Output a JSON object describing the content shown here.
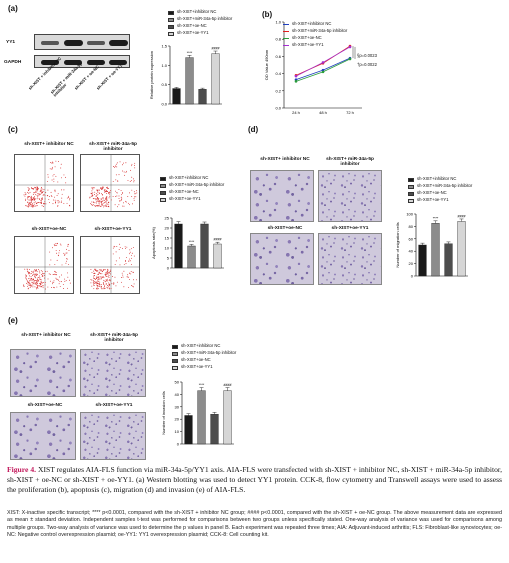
{
  "panels": {
    "a": {
      "letter": "(a)",
      "row_labels": [
        "YY1",
        "GAPDH"
      ],
      "lane_labels": [
        "sh-XIST + inhibitor NC",
        "sh-XIST + miR-34a-5p inhibitor",
        "sh-XIST + oe-NC",
        "sh-XIST + oe-YY1"
      ],
      "legend": [
        "sh-XIST+inhibitor NC",
        "sh-XIST+miR-34a-5p inhibitor",
        "sh-XIST+oe-NC",
        "sh-XIST+oe-YY1"
      ],
      "sig": [
        "****",
        "####"
      ]
    },
    "b": {
      "letter": "(b)",
      "legend": [
        "sh-XIST+inhibitor NC",
        "sh-XIST+miR-34a-5p inhibitor",
        "sh-XIST+oe-NC",
        "sh-XIST+oe-YY1"
      ],
      "annotations": [
        "§p=0.0023",
        "†p=0.0022"
      ]
    },
    "c": {
      "letter": "(c)",
      "image_labels": [
        "sh-XIST+ inhibitor NC",
        "sh-XIST+ miR-34a-5p inhibitor",
        "sh-XIST+oe-NC",
        "sh-XIST+oe-YY1"
      ],
      "legend": [
        "sh-XIST+inhibitor NC",
        "sh-XIST+miR-34a-5p inhibitor",
        "sh-XIST+oe-NC",
        "sh-XIST+oe-YY1"
      ],
      "sig": [
        "****",
        "####"
      ]
    },
    "d": {
      "letter": "(d)",
      "image_labels": [
        "sh-XIST+ inhibitor NC",
        "sh-XIST+ miR-34a-5p inhibitor",
        "sh-XIST+oe-NC",
        "sh-XIST+oe-YY1"
      ],
      "legend": [
        "sh-XIST+inhibitor NC",
        "sh-XIST+miR-34a-5p inhibitor",
        "sh-XIST+oe-NC",
        "sh-XIST+oe-YY1"
      ],
      "sig": [
        "****",
        "####"
      ]
    },
    "e": {
      "letter": "(e)",
      "image_labels": [
        "sh-XIST+ inhibitor NC",
        "sh-XIST+ miR-34a-5p inhibitor",
        "sh-XIST+oe-NC",
        "sh-XIST+oe-YY1"
      ],
      "legend": [
        "sh-XIST+inhibitor NC",
        "sh-XIST+miR-34a-5p inhibitor",
        "sh-XIST+oe-NC",
        "sh-XIST+oe-YY1"
      ],
      "sig": [
        "****",
        "####"
      ]
    }
  },
  "bar_colors": [
    "#1a1a1a",
    "#8c8c8c",
    "#4d4d4d",
    "#d6d6d6"
  ],
  "line_colors": [
    "#1f3fbf",
    "#e0201f",
    "#2a9d3a",
    "#a42fd0"
  ],
  "chart_data": [
    {
      "panel": "a",
      "type": "bar",
      "categories": [
        "sh-XIST+inhibitor NC",
        "sh-XIST+miR-34a-5p inhibitor",
        "sh-XIST+oe-NC",
        "sh-XIST+oe-YY1"
      ],
      "values": [
        0.4,
        1.2,
        0.38,
        1.3
      ],
      "errors": [
        0.03,
        0.06,
        0.03,
        0.07
      ],
      "ylabel": "Relative protein expression",
      "ylim": [
        0,
        1.5
      ],
      "yticks": [
        "0.0",
        "0.5",
        "1.0",
        "1.5"
      ]
    },
    {
      "panel": "b",
      "type": "line",
      "x": [
        "24 h",
        "48 h",
        "72 h"
      ],
      "ylabel": "OD Value 490nm",
      "ylim": [
        0.0,
        1.0
      ],
      "yticks": [
        "0.0",
        "0.2",
        "0.4",
        "0.6",
        "0.8",
        "1.0"
      ],
      "series": [
        {
          "name": "sh-XIST+inhibitor NC",
          "values": [
            0.33,
            0.44,
            0.58
          ]
        },
        {
          "name": "sh-XIST+miR-34a-5p inhibitor",
          "values": [
            0.38,
            0.52,
            0.72
          ]
        },
        {
          "name": "sh-XIST+oe-NC",
          "values": [
            0.31,
            0.42,
            0.57
          ]
        },
        {
          "name": "sh-XIST+oe-YY1",
          "values": [
            0.37,
            0.53,
            0.71
          ]
        }
      ]
    },
    {
      "panel": "c",
      "type": "bar",
      "categories": [
        "sh-XIST+inhibitor NC",
        "sh-XIST+miR-34a-5p inhibitor",
        "sh-XIST+oe-NC",
        "sh-XIST+oe-YY1"
      ],
      "values": [
        22,
        11,
        22,
        12
      ],
      "errors": [
        1.2,
        0.8,
        1.0,
        0.9
      ],
      "ylabel": "Apoptosis rate(%)",
      "ylim": [
        0,
        25
      ],
      "yticks": [
        "0",
        "5",
        "10",
        "15",
        "20",
        "25"
      ]
    },
    {
      "panel": "d",
      "type": "bar",
      "categories": [
        "sh-XIST+inhibitor NC",
        "sh-XIST+miR-34a-5p inhibitor",
        "sh-XIST+oe-NC",
        "sh-XIST+oe-YY1"
      ],
      "values": [
        50,
        85,
        52,
        88
      ],
      "errors": [
        3,
        4,
        3,
        4
      ],
      "ylabel": "Number of migration cells",
      "ylim": [
        0,
        100
      ],
      "yticks": [
        "0",
        "20",
        "40",
        "60",
        "80",
        "100"
      ]
    },
    {
      "panel": "e",
      "type": "bar",
      "categories": [
        "sh-XIST+inhibitor NC",
        "sh-XIST+miR-34a-5p inhibitor",
        "sh-XIST+oe-NC",
        "sh-XIST+oe-YY1"
      ],
      "values": [
        23,
        43,
        24,
        43
      ],
      "errors": [
        1.5,
        2.5,
        1.5,
        2.5
      ],
      "ylabel": "Number of invasion cells",
      "ylim": [
        0,
        50
      ],
      "yticks": [
        "0",
        "10",
        "20",
        "30",
        "40",
        "50"
      ]
    }
  ],
  "caption": {
    "fig_label": "Figure 4.",
    "text": " XIST regulates AIA-FLS function via miR-34a-5p/YY1 axis. AIA-FLS were transfected with sh-XIST + inhibitor NC, sh-XIST + miR-34a-5p inhibitor, sh-XIST + oe-NC or sh-XIST + oe-YY1. (a) Western blotting was used to detect YY1 protein. CCK-8, flow cytometry and Transwell assays were used to assess the proliferation (b), apoptosis (c), migration (d) and invasion (e) of AIA-FLS."
  },
  "footnote": "XIST: X-inactive specific transcript; **** p<0.0001, compared with the sh-XIST + inhibitor NC group; #### p<0.0001, compared with the sh-XIST + oe-NC group. The above measurement data are expressed as mean ± standard deviation. Independent samples t-test was performed for comparisons between two groups unless specifically stated. One-way analysis of variance was used for comparisons among multiple groups. Two-way analysis of variance was used to determine the p values in panel B. Each experiment was repeated three times; AIA: Adjuvant-induced arthritis; FLS: Fibroblast-like synoviocytes; oe-NC: Negative control overexpression plasmid; oe-YY1: YY1 overexpression plasmid; CCK-8: Cell counting kit."
}
